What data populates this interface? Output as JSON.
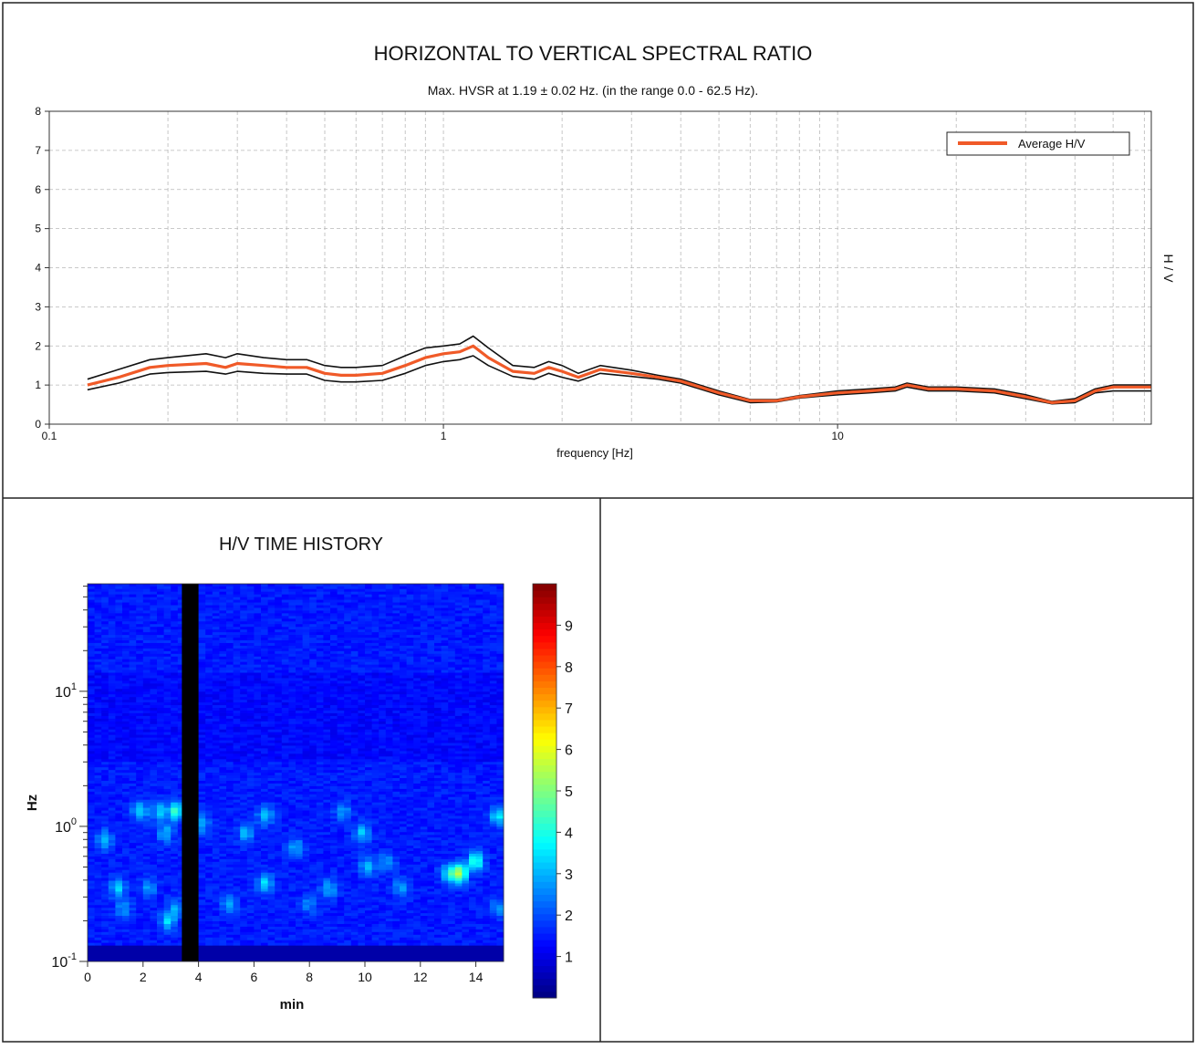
{
  "chart_data": [
    {
      "type": "line",
      "title": "HORIZONTAL TO VERTICAL SPECTRAL RATIO",
      "subtitle": "Max. HVSR at 1.19 ± 0.02 Hz. (in the range 0.0 - 62.5 Hz).",
      "xlabel": "frequency [Hz]",
      "ylabel": "H / V",
      "x_scale": "log",
      "xlim": [
        0.1,
        62.5
      ],
      "ylim": [
        0,
        8
      ],
      "x_ticks": [
        "0.1",
        "1",
        "10"
      ],
      "y_ticks": [
        "0",
        "1",
        "2",
        "3",
        "4",
        "5",
        "6",
        "7",
        "8"
      ],
      "grid": true,
      "legend_position": "top-right",
      "x": [
        0.125,
        0.15,
        0.18,
        0.2,
        0.25,
        0.28,
        0.3,
        0.35,
        0.4,
        0.45,
        0.5,
        0.55,
        0.6,
        0.7,
        0.8,
        0.9,
        1.0,
        1.1,
        1.19,
        1.3,
        1.5,
        1.7,
        1.85,
        2.0,
        2.2,
        2.5,
        3.0,
        3.5,
        4.0,
        5.0,
        6.0,
        7.0,
        8.0,
        10.0,
        12.0,
        14.0,
        15.0,
        17.0,
        20.0,
        25.0,
        30.0,
        35.0,
        40.0,
        45.0,
        50.0,
        62.5
      ],
      "series": [
        {
          "name": "Average H/V",
          "color": "#f05a28",
          "values": [
            1.0,
            1.2,
            1.45,
            1.5,
            1.55,
            1.45,
            1.55,
            1.5,
            1.45,
            1.45,
            1.3,
            1.25,
            1.25,
            1.3,
            1.5,
            1.7,
            1.8,
            1.85,
            2.0,
            1.7,
            1.35,
            1.3,
            1.45,
            1.35,
            1.2,
            1.4,
            1.3,
            1.2,
            1.1,
            0.8,
            0.6,
            0.6,
            0.7,
            0.8,
            0.85,
            0.9,
            1.0,
            0.9,
            0.9,
            0.85,
            0.7,
            0.55,
            0.6,
            0.85,
            0.95,
            0.95
          ]
        },
        {
          "color": "#111111",
          "values": [
            1.15,
            1.4,
            1.65,
            1.7,
            1.8,
            1.7,
            1.8,
            1.7,
            1.65,
            1.65,
            1.5,
            1.45,
            1.45,
            1.5,
            1.75,
            1.95,
            2.0,
            2.05,
            2.25,
            1.95,
            1.5,
            1.45,
            1.6,
            1.5,
            1.3,
            1.5,
            1.38,
            1.25,
            1.15,
            0.85,
            0.63,
            0.63,
            0.73,
            0.85,
            0.9,
            0.95,
            1.05,
            0.95,
            0.95,
            0.9,
            0.75,
            0.58,
            0.65,
            0.9,
            1.0,
            1.0
          ]
        },
        {
          "color": "#111111",
          "values": [
            0.88,
            1.05,
            1.28,
            1.32,
            1.35,
            1.28,
            1.35,
            1.3,
            1.28,
            1.28,
            1.12,
            1.08,
            1.08,
            1.12,
            1.3,
            1.5,
            1.6,
            1.65,
            1.75,
            1.5,
            1.22,
            1.15,
            1.3,
            1.2,
            1.1,
            1.3,
            1.22,
            1.15,
            1.05,
            0.75,
            0.55,
            0.57,
            0.67,
            0.75,
            0.8,
            0.85,
            0.95,
            0.85,
            0.85,
            0.8,
            0.65,
            0.52,
            0.55,
            0.8,
            0.85,
            0.85
          ]
        }
      ]
    },
    {
      "type": "heatmap",
      "title": "H/V TIME HISTORY",
      "xlabel": "min",
      "ylabel": "Hz",
      "x_scale": "linear",
      "xlim": [
        0,
        15
      ],
      "x_ticks": [
        "0",
        "2",
        "4",
        "6",
        "8",
        "10",
        "12",
        "14"
      ],
      "y_scale": "log",
      "ylim": [
        0.1,
        62.5
      ],
      "y_ticks": [
        {
          "base": "10",
          "exp": "-1"
        },
        {
          "base": "10",
          "exp": "0"
        },
        {
          "base": "10",
          "exp": "1"
        }
      ],
      "colorbar_ticks": [
        "1",
        "2",
        "3",
        "4",
        "5",
        "6",
        "7",
        "8",
        "9"
      ],
      "colorbar_range": [
        0,
        10
      ],
      "colormap": "jet",
      "masked_time_range": [
        3.4,
        4.0
      ],
      "freq_resolution": 0.02,
      "time_window": 0.25,
      "background_value": 1.5,
      "hotspots": [
        {
          "t": 0.6,
          "f": 0.8,
          "v": 3.2
        },
        {
          "t": 1.1,
          "f": 0.35,
          "v": 3.3
        },
        {
          "t": 1.3,
          "f": 0.25,
          "v": 2.8
        },
        {
          "t": 1.9,
          "f": 1.3,
          "v": 3.4
        },
        {
          "t": 2.2,
          "f": 0.35,
          "v": 2.8
        },
        {
          "t": 2.6,
          "f": 1.3,
          "v": 3.2
        },
        {
          "t": 2.8,
          "f": 0.9,
          "v": 3.0
        },
        {
          "t": 2.9,
          "f": 0.2,
          "v": 3.4
        },
        {
          "t": 3.2,
          "f": 1.3,
          "v": 4.3
        },
        {
          "t": 3.2,
          "f": 0.25,
          "v": 2.8
        },
        {
          "t": 4.1,
          "f": 1.05,
          "v": 3.0
        },
        {
          "t": 5.1,
          "f": 0.27,
          "v": 2.9
        },
        {
          "t": 5.7,
          "f": 0.9,
          "v": 3.1
        },
        {
          "t": 6.4,
          "f": 1.2,
          "v": 3.2
        },
        {
          "t": 6.4,
          "f": 0.38,
          "v": 3.4
        },
        {
          "t": 7.5,
          "f": 0.7,
          "v": 2.9
        },
        {
          "t": 8.0,
          "f": 0.27,
          "v": 2.6
        },
        {
          "t": 8.7,
          "f": 0.35,
          "v": 3.0
        },
        {
          "t": 9.2,
          "f": 1.3,
          "v": 2.8
        },
        {
          "t": 9.9,
          "f": 0.9,
          "v": 3.2
        },
        {
          "t": 10.1,
          "f": 0.5,
          "v": 3.0
        },
        {
          "t": 10.8,
          "f": 0.55,
          "v": 2.8
        },
        {
          "t": 11.3,
          "f": 0.35,
          "v": 2.8
        },
        {
          "t": 13.0,
          "f": 0.45,
          "v": 3.3
        },
        {
          "t": 13.4,
          "f": 0.45,
          "v": 5.4
        },
        {
          "t": 14.0,
          "f": 0.55,
          "v": 4.3
        },
        {
          "t": 14.8,
          "f": 1.2,
          "v": 3.6
        },
        {
          "t": 14.8,
          "f": 0.25,
          "v": 2.6
        }
      ]
    }
  ]
}
